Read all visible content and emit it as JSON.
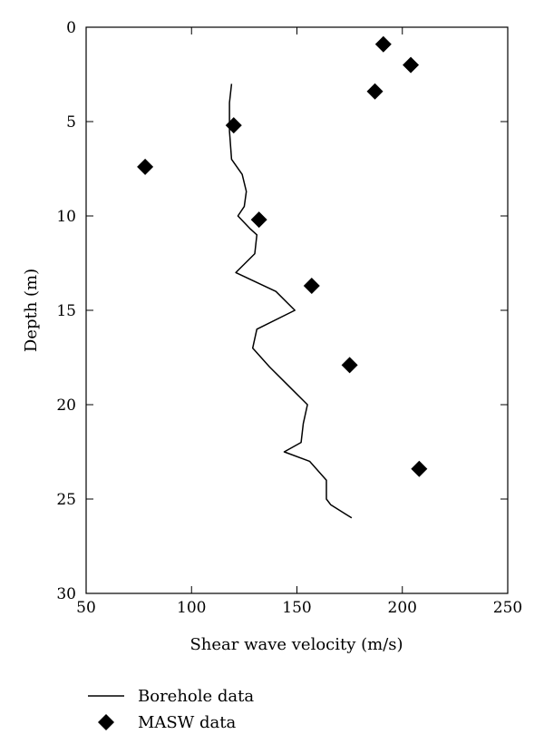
{
  "chart_data": {
    "type": "scatter",
    "title": "",
    "xlabel": "Shear wave velocity (m/s)",
    "ylabel": "Depth (m)",
    "xlim": [
      50,
      250
    ],
    "ylim": [
      0,
      30
    ],
    "y_inverted": true,
    "xticks": [
      50,
      100,
      150,
      200,
      250
    ],
    "yticks": [
      0,
      5,
      10,
      15,
      20,
      25,
      30
    ],
    "grid": false,
    "legend_position": "bottom",
    "series": [
      {
        "name": "Borehole data",
        "type": "line",
        "color": "#000000",
        "points": [
          [
            119,
            3
          ],
          [
            118,
            4
          ],
          [
            118,
            5.5
          ],
          [
            119,
            7
          ],
          [
            124,
            7.8
          ],
          [
            126,
            8.7
          ],
          [
            125,
            9.5
          ],
          [
            122,
            10
          ],
          [
            128,
            10.7
          ],
          [
            131,
            11
          ],
          [
            130,
            12
          ],
          [
            121,
            13
          ],
          [
            140,
            14
          ],
          [
            149,
            15
          ],
          [
            131,
            16
          ],
          [
            129,
            17
          ],
          [
            137,
            18
          ],
          [
            146,
            19
          ],
          [
            155,
            20
          ],
          [
            153,
            21
          ],
          [
            152,
            22
          ],
          [
            144,
            22.5
          ],
          [
            156,
            23
          ],
          [
            164,
            24
          ],
          [
            164,
            25
          ],
          [
            166,
            25.3
          ],
          [
            176,
            26
          ]
        ]
      },
      {
        "name": "MASW data",
        "type": "scatter",
        "marker": "diamond",
        "color": "#000000",
        "points": [
          [
            191,
            0.9
          ],
          [
            204,
            2.0
          ],
          [
            187,
            3.4
          ],
          [
            120,
            5.2
          ],
          [
            78,
            7.4
          ],
          [
            132,
            10.2
          ],
          [
            157,
            13.7
          ],
          [
            175,
            17.9
          ],
          [
            208,
            23.4
          ]
        ]
      }
    ]
  }
}
